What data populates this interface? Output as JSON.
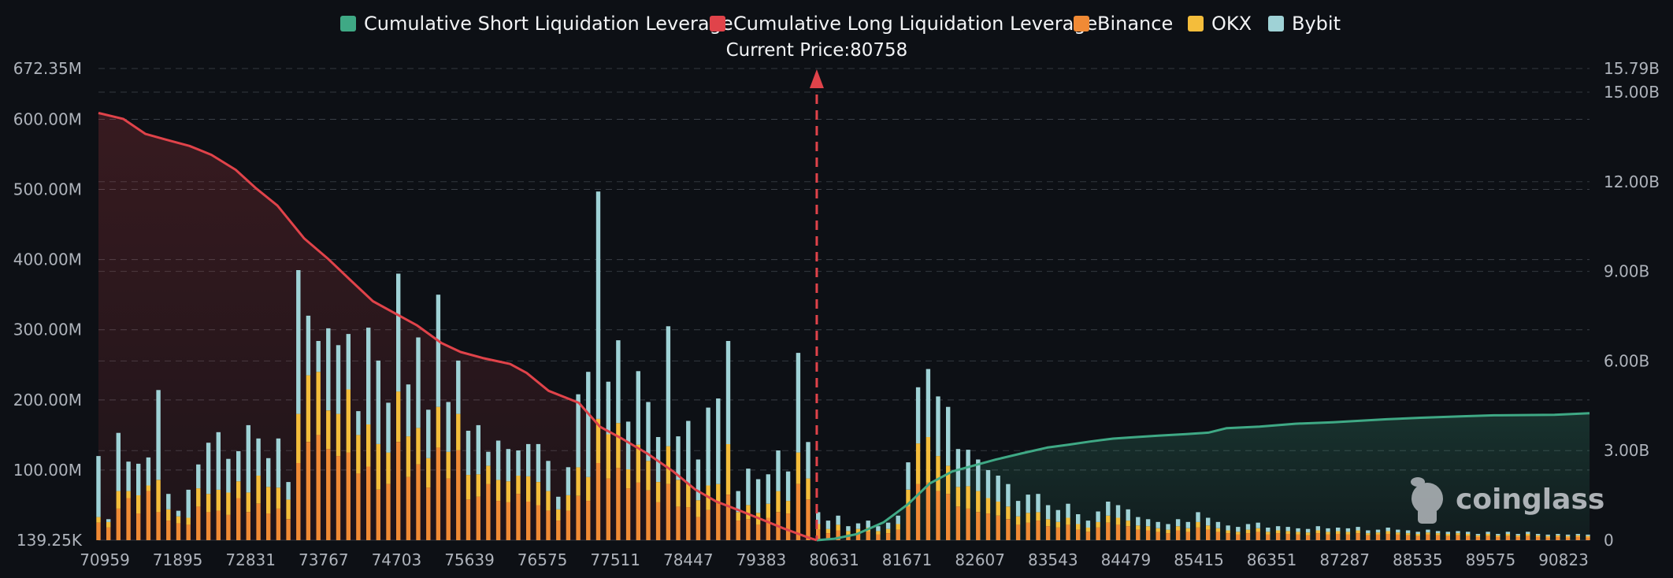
{
  "chart_data": {
    "type": "bar",
    "current_price_label": "Current Price:80758",
    "current_price": 80758,
    "watermark": "coinglass",
    "legend": [
      {
        "name": "Cumulative Short Liquidation Leverage",
        "color": "#3fa985"
      },
      {
        "name": "Cumulative Long Liquidation Leverage",
        "color": "#e0434a"
      },
      {
        "name": "Binance",
        "color": "#f08a35"
      },
      {
        "name": "OKX",
        "color": "#f4bd3b"
      },
      {
        "name": "Bybit",
        "color": "#9fd2d6"
      }
    ],
    "legend_placement": "top-center",
    "x_ticks": [
      "70959",
      "71895",
      "72831",
      "73767",
      "74703",
      "75639",
      "76575",
      "77511",
      "78447",
      "79383",
      "80631",
      "81671",
      "82607",
      "83543",
      "84479",
      "85415",
      "86351",
      "87287",
      "88535",
      "89575",
      "90823"
    ],
    "x_range": [
      70959,
      91300
    ],
    "y_left": {
      "ticks": [
        "139.25K",
        "100.00M",
        "200.00M",
        "300.00M",
        "400.00M",
        "500.00M",
        "600.00M",
        "672.35M"
      ],
      "range": [
        0,
        672.35
      ],
      "unit": "M"
    },
    "y_right": {
      "ticks": [
        "0",
        "3.00B",
        "6.00B",
        "9.00B",
        "12.00B",
        "15.00B",
        "15.79B"
      ],
      "range": [
        0,
        15.79
      ],
      "unit": "B"
    },
    "grid": true,
    "cumulative_long": {
      "x": [
        70959,
        71300,
        71600,
        71895,
        72200,
        72500,
        72831,
        73100,
        73400,
        73767,
        74100,
        74400,
        74703,
        75000,
        75300,
        75639,
        75900,
        76200,
        76575,
        76800,
        77100,
        77511,
        77800,
        78100,
        78447,
        78800,
        79100,
        79383,
        79700,
        80000,
        80300,
        80631,
        80758
      ],
      "values": [
        14.3,
        14.1,
        13.6,
        13.4,
        13.2,
        12.9,
        12.4,
        11.8,
        11.2,
        10.1,
        9.4,
        8.7,
        8.0,
        7.6,
        7.2,
        6.6,
        6.3,
        6.1,
        5.9,
        5.6,
        5.0,
        4.6,
        3.8,
        3.4,
        2.9,
        2.3,
        1.7,
        1.3,
        1.0,
        0.7,
        0.4,
        0.1,
        0
      ]
    },
    "cumulative_short": {
      "x": [
        80758,
        81000,
        81300,
        81671,
        82000,
        82300,
        82607,
        82900,
        83200,
        83543,
        83900,
        84200,
        84479,
        84800,
        85100,
        85415,
        85800,
        86100,
        86351,
        86800,
        87287,
        87800,
        88535,
        89000,
        89575,
        90000,
        90823,
        91300
      ],
      "values": [
        0,
        0.05,
        0.2,
        0.6,
        1.2,
        1.9,
        2.3,
        2.5,
        2.7,
        2.9,
        3.1,
        3.2,
        3.3,
        3.4,
        3.45,
        3.5,
        3.55,
        3.6,
        3.75,
        3.8,
        3.9,
        3.95,
        4.05,
        4.1,
        4.15,
        4.18,
        4.2,
        4.25
      ]
    },
    "bars": {
      "x": [
        70959,
        71095,
        71231,
        71368,
        71504,
        71640,
        71777,
        71913,
        72050,
        72186,
        72322,
        72459,
        72595,
        72731,
        72868,
        73004,
        73141,
        73277,
        73413,
        73550,
        73686,
        73822,
        73959,
        74095,
        74231,
        74368,
        74504,
        74641,
        74777,
        74913,
        75050,
        75186,
        75322,
        75459,
        75595,
        75732,
        75868,
        76004,
        76141,
        76277,
        76413,
        76550,
        76686,
        76823,
        76959,
        77095,
        77232,
        77368,
        77504,
        77641,
        77777,
        77914,
        78050,
        78186,
        78323,
        78459,
        78595,
        78732,
        78868,
        79005,
        79141,
        79277,
        79414,
        79550,
        79686,
        79823,
        79959,
        80096,
        80232,
        80368,
        80505,
        80641,
        80777,
        80914,
        81050,
        81187,
        81323,
        81459,
        81596,
        81732,
        81868,
        82005,
        82141,
        82278,
        82414,
        82550,
        82687,
        82823,
        82959,
        83096,
        83232,
        83369,
        83505,
        83641,
        83778,
        83914,
        84050,
        84187,
        84323,
        84460,
        84596,
        84732,
        84869,
        85005,
        85141,
        85278,
        85414,
        85551,
        85687,
        85823,
        85960,
        86096,
        86232,
        86369,
        86505,
        86642,
        86778,
        86914,
        87051,
        87187,
        87324,
        87460,
        87596,
        87733,
        87869,
        88005,
        88142,
        88278,
        88415,
        88551,
        88687,
        88824,
        88960,
        89096,
        89233,
        89369,
        89506,
        89642,
        89778,
        89915,
        90051,
        90187,
        90324,
        90460,
        90597,
        90733,
        90869,
        91006,
        91142,
        91278
      ],
      "binance": [
        25,
        18,
        45,
        60,
        38,
        70,
        40,
        28,
        24,
        22,
        48,
        40,
        42,
        36,
        60,
        40,
        52,
        38,
        45,
        30,
        110,
        140,
        150,
        130,
        120,
        125,
        95,
        105,
        72,
        80,
        140,
        90,
        108,
        75,
        132,
        88,
        128,
        58,
        62,
        80,
        56,
        54,
        66,
        55,
        50,
        42,
        28,
        42,
        63,
        56,
        110,
        88,
        103,
        74,
        82,
        71,
        54,
        80,
        48,
        47,
        33,
        43,
        52,
        65,
        28,
        30,
        22,
        32,
        40,
        38,
        80,
        58,
        15,
        10,
        14,
        8,
        10,
        12,
        8,
        10,
        15,
        48,
        80,
        82,
        70,
        66,
        48,
        45,
        40,
        38,
        35,
        30,
        22,
        25,
        28,
        20,
        18,
        22,
        15,
        12,
        18,
        25,
        22,
        20,
        15,
        14,
        12,
        10,
        14,
        12,
        18,
        15,
        12,
        10,
        8,
        10,
        12,
        8,
        10,
        9,
        8,
        7,
        10,
        8,
        9,
        8,
        10,
        7,
        8,
        9,
        8,
        7,
        6,
        8,
        7,
        6,
        7,
        6,
        5,
        6,
        5,
        6,
        5,
        6,
        5,
        4,
        5,
        4,
        5,
        4
      ],
      "okx": [
        8,
        8,
        25,
        10,
        26,
        8,
        46,
        16,
        10,
        10,
        26,
        26,
        30,
        32,
        24,
        28,
        40,
        38,
        30,
        28,
        70,
        95,
        90,
        55,
        60,
        90,
        55,
        60,
        65,
        45,
        72,
        58,
        52,
        42,
        58,
        38,
        52,
        35,
        32,
        26,
        30,
        30,
        26,
        36,
        33,
        28,
        16,
        22,
        41,
        34,
        63,
        63,
        64,
        27,
        54,
        42,
        29,
        54,
        38,
        33,
        24,
        35,
        28,
        72,
        12,
        20,
        17,
        20,
        30,
        18,
        45,
        30,
        8,
        6,
        8,
        5,
        6,
        6,
        5,
        6,
        8,
        24,
        58,
        65,
        50,
        40,
        28,
        32,
        30,
        22,
        20,
        18,
        12,
        14,
        12,
        10,
        8,
        10,
        8,
        6,
        8,
        10,
        10,
        8,
        6,
        6,
        5,
        5,
        6,
        5,
        8,
        6,
        5,
        4,
        4,
        5,
        5,
        4,
        4,
        4,
        4,
        4,
        4,
        4,
        4,
        4,
        4,
        3,
        3,
        4,
        3,
        3,
        3,
        3,
        3,
        3,
        3,
        3,
        2,
        3,
        2,
        3,
        2,
        3,
        2,
        2,
        2,
        2,
        2,
        2
      ],
      "bybit": [
        87,
        4,
        83,
        42,
        45,
        40,
        128,
        22,
        8,
        40,
        34,
        73,
        82,
        48,
        43,
        96,
        53,
        41,
        70,
        25,
        205,
        85,
        44,
        117,
        98,
        79,
        34,
        138,
        119,
        71,
        168,
        74,
        129,
        69,
        160,
        71,
        76,
        63,
        70,
        20,
        56,
        46,
        36,
        46,
        54,
        43,
        18,
        40,
        104,
        150,
        324,
        75,
        118,
        68,
        105,
        84,
        64,
        171,
        62,
        90,
        58,
        111,
        122,
        147,
        30,
        52,
        48,
        42,
        58,
        42,
        142,
        52,
        17,
        12,
        13,
        7,
        8,
        10,
        7,
        9,
        12,
        39,
        80,
        97,
        85,
        84,
        54,
        52,
        45,
        40,
        37,
        32,
        22,
        26,
        26,
        20,
        17,
        20,
        14,
        10,
        15,
        20,
        18,
        16,
        12,
        10,
        9,
        8,
        10,
        9,
        14,
        11,
        9,
        7,
        7,
        8,
        8,
        6,
        6,
        6,
        5,
        5,
        6,
        5,
        5,
        5,
        5,
        4,
        4,
        5,
        4,
        4,
        3,
        4,
        3,
        3,
        3,
        3,
        2,
        3,
        2,
        3,
        2,
        3,
        2,
        2,
        2,
        2,
        2,
        2
      ]
    }
  }
}
